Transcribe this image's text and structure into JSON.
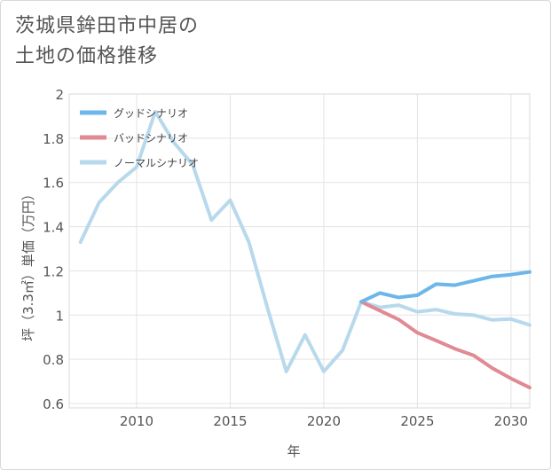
{
  "title_lines": [
    "茨城県鉾田市中居の",
    "土地の価格推移"
  ],
  "chart_data": {
    "type": "line",
    "xlabel": "年",
    "ylabel": "坪（3.3㎡）単価（万円）",
    "xlim": [
      2006.4,
      2031
    ],
    "ylim": [
      0.58,
      2.0
    ],
    "xticks": [
      2010,
      2015,
      2020,
      2025,
      2030
    ],
    "xtick_labels": [
      "2010",
      "2015",
      "2020",
      "2025",
      "2030"
    ],
    "yticks": [
      0.6,
      0.8,
      1.0,
      1.2,
      1.4,
      1.6,
      1.8,
      2.0
    ],
    "ytick_labels": [
      "0.6",
      "0.8",
      "1",
      "1.2",
      "1.4",
      "1.6",
      "1.8",
      "2"
    ],
    "grid": true,
    "legend_position": "top-left",
    "series": [
      {
        "name": "グッドシナリオ",
        "color": "#6cb6ea",
        "x": [
          2022,
          2023,
          2024,
          2025,
          2026,
          2027,
          2028,
          2029,
          2030,
          2031
        ],
        "values": [
          1.06,
          1.1,
          1.08,
          1.09,
          1.14,
          1.135,
          1.155,
          1.175,
          1.183,
          1.195
        ]
      },
      {
        "name": "バッドシナリオ",
        "color": "#e08a93",
        "x": [
          2022,
          2023,
          2024,
          2025,
          2026,
          2027,
          2028,
          2029,
          2030,
          2031
        ],
        "values": [
          1.06,
          1.02,
          0.98,
          0.92,
          0.885,
          0.848,
          0.818,
          0.76,
          0.713,
          0.672
        ]
      },
      {
        "name": "ノーマルシナリオ",
        "color": "#b8d9ec",
        "x": [
          2007,
          2008,
          2009,
          2010,
          2011,
          2012,
          2013,
          2014,
          2015,
          2016,
          2017,
          2018,
          2019,
          2020,
          2021,
          2022,
          2023,
          2024,
          2025,
          2026,
          2027,
          2028,
          2029,
          2030,
          2031
        ],
        "values": [
          1.33,
          1.51,
          1.6,
          1.67,
          1.92,
          1.78,
          1.68,
          1.43,
          1.52,
          1.33,
          1.03,
          0.745,
          0.91,
          0.745,
          0.84,
          1.06,
          1.035,
          1.045,
          1.015,
          1.025,
          1.005,
          1.0,
          0.978,
          0.982,
          0.955
        ]
      }
    ]
  }
}
